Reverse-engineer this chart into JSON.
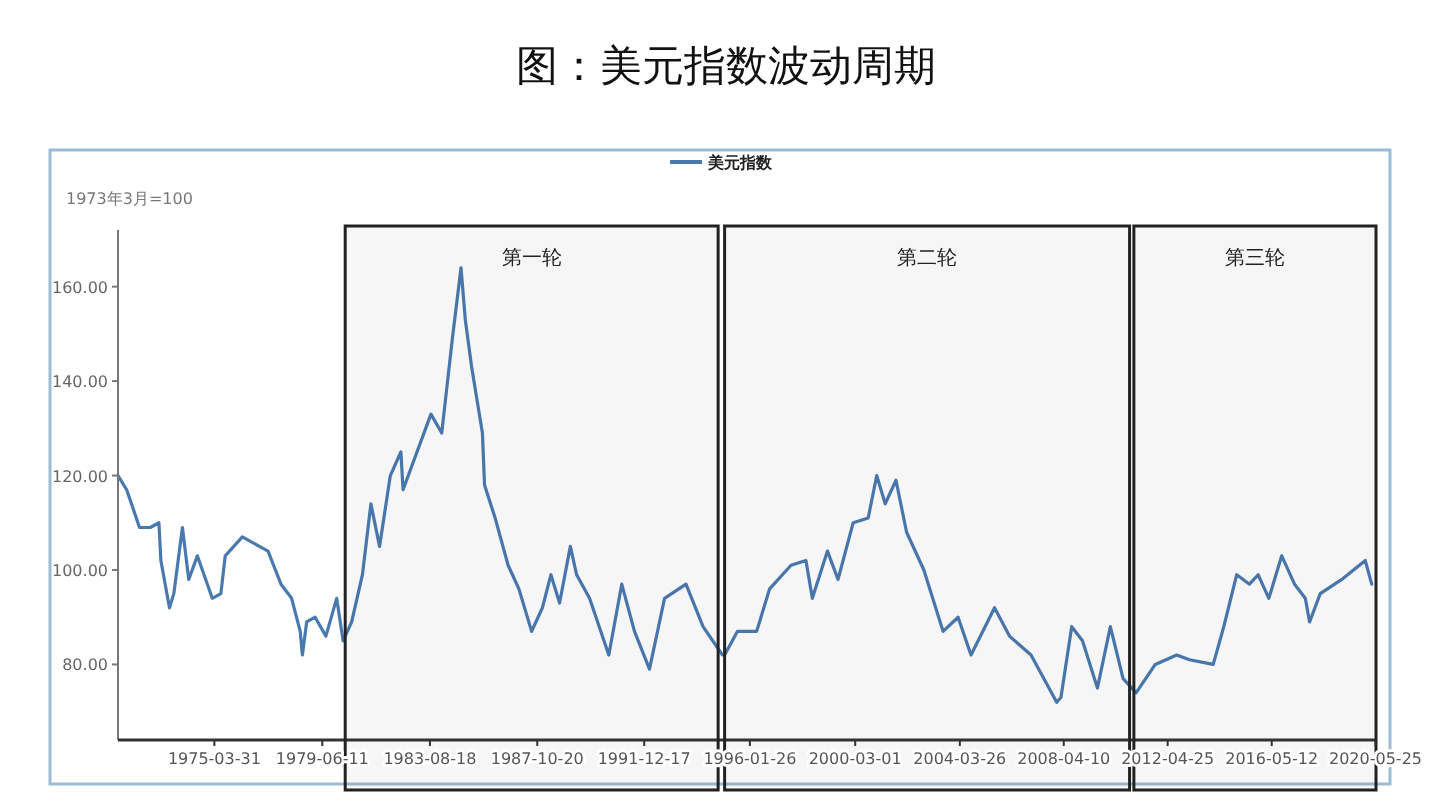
{
  "chart_data": {
    "type": "line",
    "title": "图：美元指数波动周期",
    "ylabel": "1973年3月=100",
    "legend": "top",
    "x": [
      "1971-07",
      "1971-11",
      "1972-02",
      "1972-05",
      "1972-10",
      "1973-02",
      "1973-03",
      "1973-07",
      "1973-09",
      "1974-01",
      "1974-04",
      "1974-08",
      "1975-03",
      "1975-07",
      "1975-09",
      "1976-05",
      "1977-05",
      "1977-11",
      "1978-04",
      "1978-08",
      "1978-09",
      "1978-11",
      "1979-03",
      "1979-08",
      "1980-01",
      "1980-04",
      "1980-08",
      "1981-01",
      "1981-05",
      "1981-09",
      "1982-02",
      "1982-07",
      "1982-08",
      "1983-09",
      "1984-02",
      "1984-07",
      "1984-11",
      "1985-01",
      "1985-04",
      "1985-09",
      "1985-10",
      "1986-03",
      "1986-09",
      "1987-02",
      "1987-08",
      "1988-01",
      "1988-05",
      "1988-09",
      "1989-02",
      "1989-05",
      "1989-11",
      "1990-08",
      "1991-02",
      "1991-08",
      "1992-03",
      "1992-10",
      "1993-08",
      "1994-04",
      "1995-01",
      "1995-02",
      "1995-08",
      "1996-05",
      "1996-11",
      "1997-09",
      "1998-04",
      "1998-07",
      "1999-02",
      "1999-07",
      "2000-02",
      "2000-09",
      "2001-01",
      "2001-05",
      "2001-10",
      "2002-03",
      "2002-11",
      "2003-08",
      "2004-03",
      "2004-09",
      "2005-08",
      "2006-03",
      "2007-01",
      "2008-01",
      "2008-03",
      "2008-08",
      "2009-01",
      "2009-08",
      "2010-02",
      "2010-08",
      "2011-02",
      "2011-11",
      "2012-09",
      "2013-03",
      "2014-02",
      "2014-07",
      "2015-01",
      "2015-07",
      "2015-11",
      "2016-04",
      "2016-10",
      "2017-04",
      "2017-09",
      "2017-11",
      "2018-04",
      "2019-02",
      "2020-01",
      "2020-04"
    ],
    "series": [
      {
        "name": "美元指数",
        "color": "#4a79b0",
        "values": [
          120,
          117,
          113,
          109,
          109,
          110,
          102,
          92,
          95,
          109,
          98,
          103,
          94,
          95,
          103,
          107,
          104,
          97,
          94,
          87,
          82,
          89,
          90,
          86,
          94,
          85,
          89,
          99,
          114,
          105,
          120,
          125,
          117,
          133,
          129,
          149,
          164,
          153,
          143,
          129,
          118,
          111,
          101,
          96,
          87,
          92,
          99,
          93,
          105,
          99,
          94,
          82,
          97,
          87,
          79,
          94,
          97,
          88,
          82,
          82,
          87,
          87,
          96,
          101,
          102,
          94,
          104,
          98,
          110,
          111,
          120,
          114,
          119,
          108,
          100,
          87,
          90,
          82,
          92,
          86,
          82,
          72,
          73,
          88,
          85,
          75,
          88,
          77,
          74,
          80,
          82,
          81,
          80,
          88,
          99,
          97,
          99,
          94,
          103,
          97,
          94,
          89,
          95,
          98,
          102,
          97
        ]
      }
    ],
    "xlim": [
      "1971-07-01",
      "2020-06-01"
    ],
    "xticks": [
      "1975-03-31",
      "1979-06-11",
      "1983-08-18",
      "1987-10-20",
      "1991-12-17",
      "1996-01-26",
      "2000-03-01",
      "2004-03-26",
      "2008-04-10",
      "2012-04-25",
      "2016-05-12",
      "2020-05-25"
    ],
    "ylim": [
      64,
      172
    ],
    "yticks": [
      {
        "value": 80,
        "label": "80.00"
      },
      {
        "value": 100,
        "label": "100.00"
      },
      {
        "value": 120,
        "label": "120.00"
      },
      {
        "value": 140,
        "label": "140.00"
      },
      {
        "value": 160,
        "label": "160.00"
      }
    ],
    "bands": [
      {
        "axis": "x",
        "from": "1980-05",
        "to": "1994-11",
        "label": "第一轮",
        "color": "#222222"
      },
      {
        "axis": "x",
        "from": "1995-02",
        "to": "2010-11",
        "label": "第二轮",
        "color": "#222222"
      },
      {
        "axis": "x",
        "from": "2011-01",
        "to": "2020-06",
        "label": "第三轮",
        "color": "#222222"
      }
    ],
    "marker": "none",
    "line_style": "solid",
    "grid": false
  }
}
